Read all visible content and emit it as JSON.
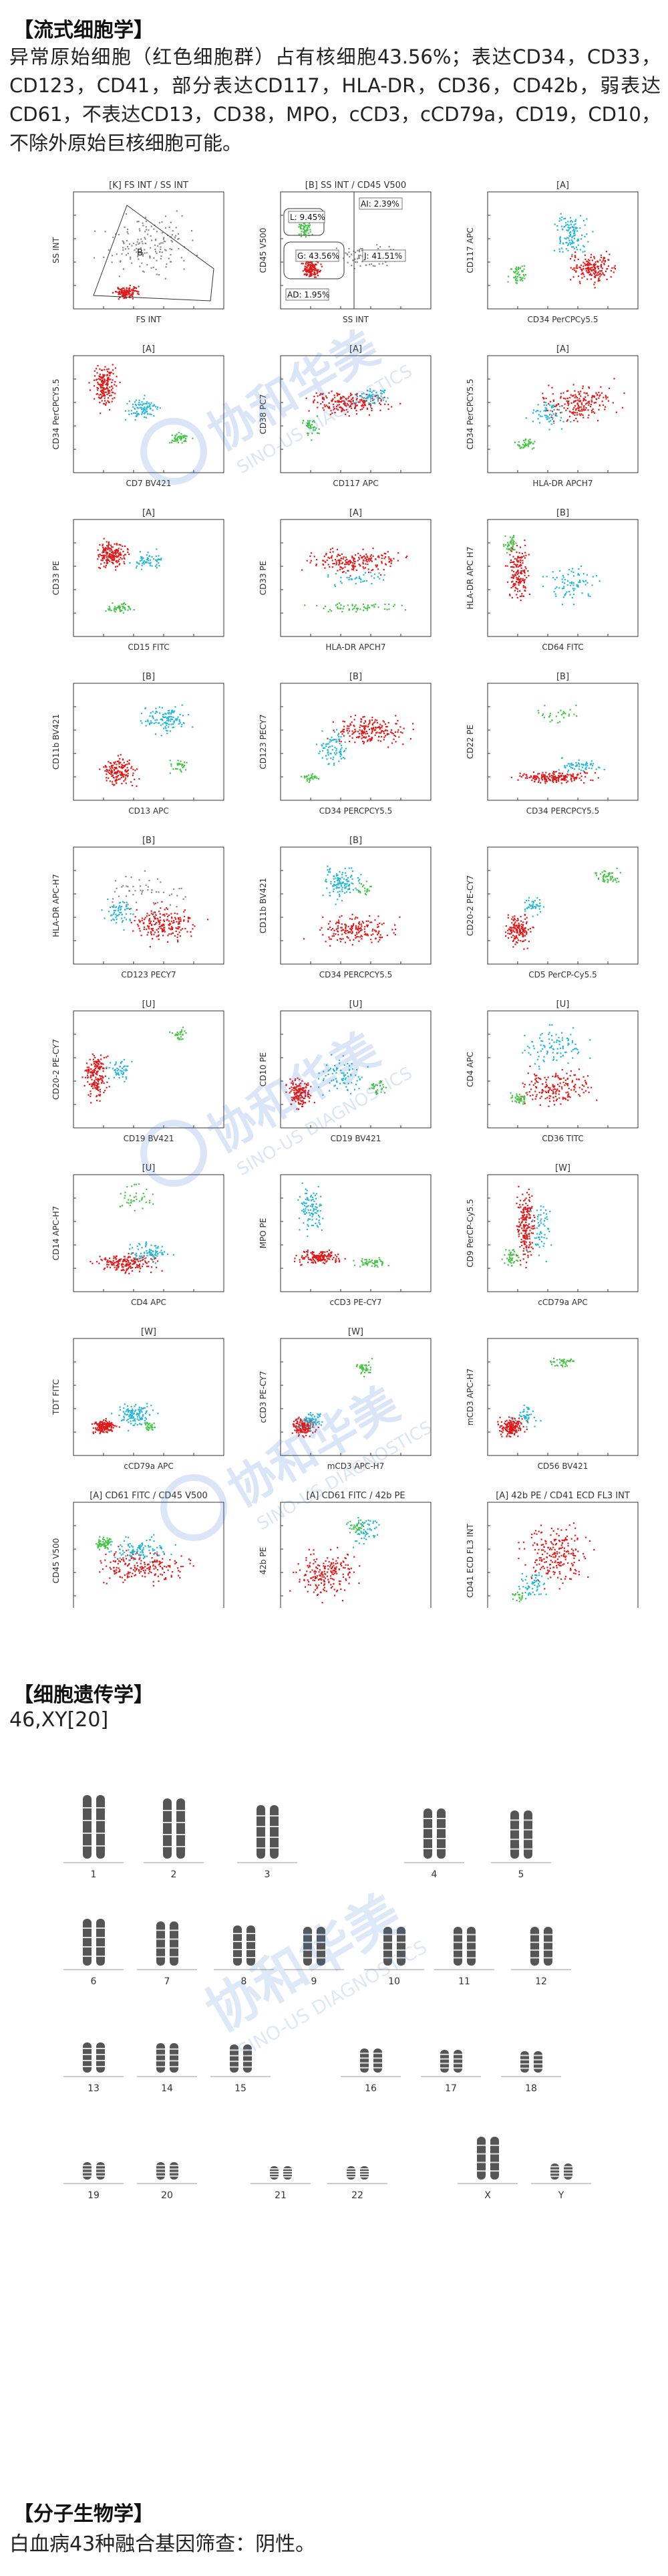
{
  "sections": {
    "flow": {
      "heading": "【流式细胞学】",
      "paragraph": "异常原始细胞（红色细胞群）占有核细胞43.56%；表达CD34，CD33，CD123，CD41，部分表达CD117，HLA-DR，CD36，CD42b，弱表达CD61，不表达CD13，CD38，MPO，cCD3，cCD79a，CD19，CD10，不除外原始巨核细胞可能。"
    },
    "cytogenetics": {
      "heading": "【细胞遗传学】",
      "karyotype": "46,XY[20]"
    },
    "molecular": {
      "heading": "【分子生物学】",
      "result": "白血病43种融合基因筛查：阴性。"
    }
  },
  "flow_plots": [
    {
      "title": "[K] FS INT / SS INT",
      "x": "FS INT",
      "y": "SS INT"
    },
    {
      "title": "[B] SS INT / CD45 V500",
      "x": "SS INT",
      "y": "CD45 V500"
    },
    {
      "title": "[A]",
      "x": "CD34 PerCPCy5.5",
      "y": "CD117 APC"
    },
    {
      "title": "[A]",
      "x": "CD7 BV421",
      "y": "CD34 PerCPCY5.5"
    },
    {
      "title": "[A]",
      "x": "CD117 APC",
      "y": "CD38 PC7"
    },
    {
      "title": "[A]",
      "x": "HLA-DR APCH7",
      "y": "CD34 PerCPCY5.5"
    },
    {
      "title": "[A]",
      "x": "CD15 FITC",
      "y": "CD33 PE"
    },
    {
      "title": "[A]",
      "x": "HLA-DR APCH7",
      "y": "CD33 PE"
    },
    {
      "title": "[B]",
      "x": "CD64 FITC",
      "y": "HLA-DR APC H7"
    },
    {
      "title": "[B]",
      "x": "CD13 APC",
      "y": "CD11b BV421"
    },
    {
      "title": "[B]",
      "x": "CD34 PERCPCY5.5",
      "y": "CD123 PECY7"
    },
    {
      "title": "[B]",
      "x": "CD34 PERCPCY5.5",
      "y": "CD22 PE"
    },
    {
      "title": "[B]",
      "x": "CD123 PECY7",
      "y": "HLA-DR APC-H7"
    },
    {
      "title": "[B]",
      "x": "CD34 PERCPCY5.5",
      "y": "CD11b BV421"
    },
    {
      "title": "",
      "x": "CD5 PerCP-Cy5.5",
      "y": "CD20-2 PE-CY7"
    },
    {
      "title": "[U]",
      "x": "CD19 BV421",
      "y": "CD20-2 PE-CY7"
    },
    {
      "title": "[U]",
      "x": "CD19 BV421",
      "y": "CD10 PE"
    },
    {
      "title": "[U]",
      "x": "CD36 TITC",
      "y": "CD4 APC"
    },
    {
      "title": "[U]",
      "x": "CD4 APC",
      "y": "CD14 APC-H7"
    },
    {
      "title": "",
      "x": "cCD3 PE-CY7",
      "y": "MPO PE"
    },
    {
      "title": "[W]",
      "x": "cCD79a APC",
      "y": "CD9 PerCP-Cy5.5"
    },
    {
      "title": "[W]",
      "x": "cCD79a APC",
      "y": "TDT FITC"
    },
    {
      "title": "[W]",
      "x": "mCD3 APC-H7",
      "y": "cCD3 PE-CY7"
    },
    {
      "title": "",
      "x": "CD56 BV421",
      "y": "mCD3 APC-H7"
    },
    {
      "title": "[A] CD61 FITC / CD45 V500",
      "x": "CD61 FITC",
      "y": "CD45 V500"
    },
    {
      "title": "[A] CD61 FITC / 42b PE",
      "x": "CD61 FITC",
      "y": "42b PE"
    },
    {
      "title": "[A] 42b PE / CD41 ECD FL3 INT",
      "x": "42b PE",
      "y": "CD41 ECD FL3 INT"
    }
  ],
  "gate_labels": {
    "k_b": "B",
    "l": "L: 9.45%",
    "ai": "AI: 2.39%",
    "g": "G: 43.56%",
    "j": "J: 41.51%",
    "ad": "AD: 1.95%"
  },
  "chromosomes": [
    "1",
    "2",
    "3",
    "4",
    "5",
    "6",
    "7",
    "8",
    "9",
    "10",
    "11",
    "12",
    "13",
    "14",
    "15",
    "16",
    "17",
    "18",
    "19",
    "20",
    "21",
    "22",
    "X",
    "Y"
  ],
  "watermark": {
    "cn": "协和华美",
    "en": "SINO-US DIAGNOSTICS"
  },
  "colors": {
    "red": "#e01818",
    "cyan": "#22b6d8",
    "green": "#44c444",
    "grey": "#8a8a8a"
  }
}
